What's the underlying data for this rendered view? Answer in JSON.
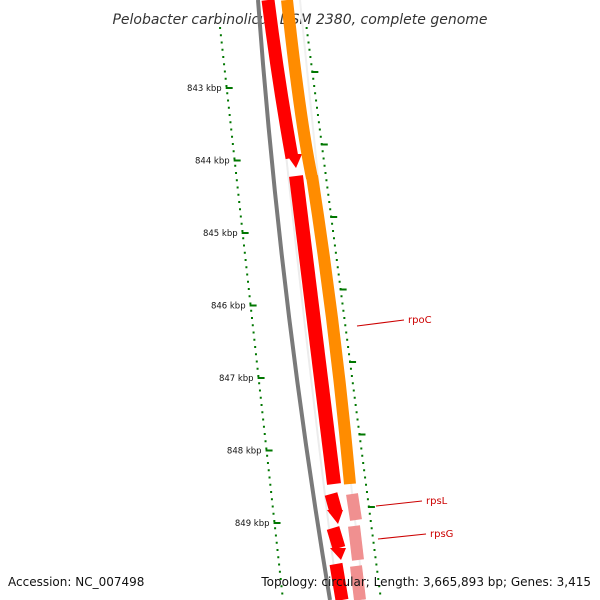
{
  "title": "Pelobacter carbinolicus DSM 2380, complete genome",
  "footer": {
    "accession": "Accession: NC_007498",
    "summary": "Topology: circular; Length: 3,665,893 bp; Genes: 3,415"
  },
  "colors": {
    "backbone": "#7a7a7a",
    "forward_strand": "#ff0000",
    "reverse_strand": "#ff8c00",
    "pale_gene": "#f09090",
    "tick": "#007700",
    "label": "#cc0000"
  },
  "ticks": [
    {
      "label": "843 kbp",
      "kbp": 843
    },
    {
      "label": "844 kbp",
      "kbp": 844
    },
    {
      "label": "845 kbp",
      "kbp": 845
    },
    {
      "label": "846 kbp",
      "kbp": 846
    },
    {
      "label": "847 kbp",
      "kbp": 847
    },
    {
      "label": "848 kbp",
      "kbp": 848
    },
    {
      "label": "849 kbp",
      "kbp": 849
    }
  ],
  "gene_labels": [
    {
      "name": "rpoC"
    },
    {
      "name": "rpsL"
    },
    {
      "name": "rpsG"
    }
  ]
}
